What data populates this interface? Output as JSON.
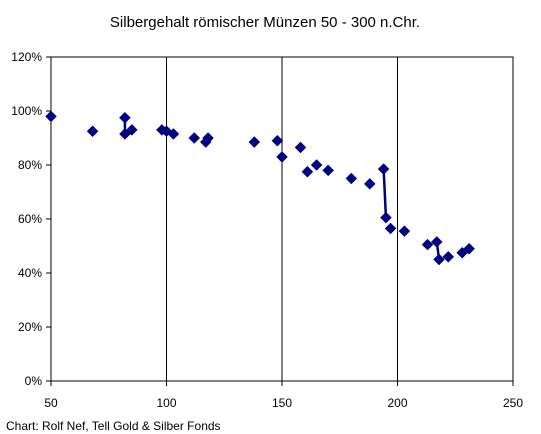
{
  "chart_data": {
    "type": "scatter",
    "title": "Silbergehalt römischer Münzen 50 - 300 n.Chr.",
    "credit": "Chart: Rolf Nef, Tell Gold & Silber Fonds",
    "xlim": [
      50,
      250
    ],
    "ylim": [
      0,
      1.2
    ],
    "x_ticks": [
      50,
      100,
      150,
      200,
      250
    ],
    "x_tick_labels": [
      "50",
      "100",
      "150",
      "200",
      "250"
    ],
    "y_ticks": [
      0,
      0.2,
      0.4,
      0.6,
      0.8,
      1.0,
      1.2
    ],
    "y_tick_labels": [
      "0%",
      "20%",
      "40%",
      "60%",
      "80%",
      "100%",
      "120%"
    ],
    "grid": "vertical",
    "marker_color": "#000080",
    "series": [
      {
        "points": [
          [
            50,
            0.98
          ],
          [
            68,
            0.925
          ],
          [
            82,
            0.975
          ],
          [
            82,
            0.915
          ],
          [
            85,
            0.93
          ],
          [
            98,
            0.93
          ],
          [
            100,
            0.925
          ],
          [
            103,
            0.915
          ],
          [
            112,
            0.9
          ],
          [
            117,
            0.885
          ],
          [
            118,
            0.9
          ],
          [
            138,
            0.885
          ],
          [
            148,
            0.89
          ],
          [
            150,
            0.83
          ],
          [
            158,
            0.865
          ],
          [
            161,
            0.775
          ],
          [
            165,
            0.8
          ],
          [
            170,
            0.78
          ],
          [
            180,
            0.75
          ],
          [
            188,
            0.73
          ],
          [
            194,
            0.785
          ],
          [
            195,
            0.605
          ],
          [
            197,
            0.565
          ],
          [
            203,
            0.555
          ],
          [
            213,
            0.505
          ],
          [
            217,
            0.515
          ],
          [
            218,
            0.45
          ],
          [
            222,
            0.46
          ],
          [
            228,
            0.475
          ],
          [
            231,
            0.49
          ]
        ],
        "connectors": [
          [
            [
              82,
              0.975
            ],
            [
              82,
              0.915
            ]
          ],
          [
            [
              194,
              0.785
            ],
            [
              195,
              0.605
            ]
          ],
          [
            [
              217,
              0.515
            ],
            [
              218,
              0.45
            ]
          ]
        ]
      }
    ]
  }
}
